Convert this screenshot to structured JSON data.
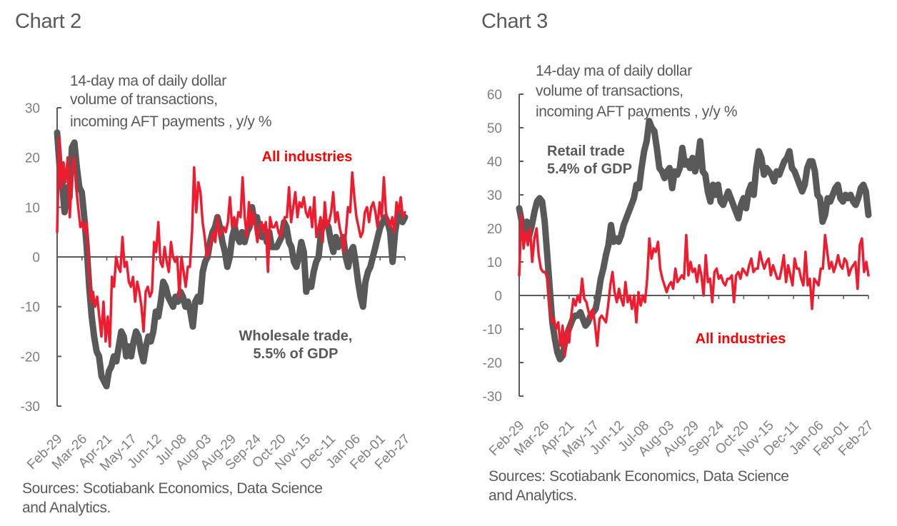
{
  "colors": {
    "gray_series": "#595959",
    "red_series": "#ee1c2e",
    "red_label": "#ff0000",
    "axis": "#595959",
    "tick_text": "#7f7f7f"
  },
  "chart_data": [
    {
      "id": "chart2",
      "type": "line",
      "title": "Chart 2",
      "subtitle": [
        "14-day  ma of daily dollar",
        "volume of transactions,",
        "incoming AFT payments , y/y %"
      ],
      "xlabel": "",
      "ylabel": "",
      "ylim": [
        -30,
        30
      ],
      "yticks": [
        30,
        20,
        10,
        0,
        -10,
        -20,
        -30
      ],
      "xticks": [
        "Feb-29",
        "Mar-26",
        "Apr-21",
        "May-17",
        "Jun-12",
        "Jul-08",
        "Aug-03",
        "Aug-29",
        "Sep-24",
        "Oct-20",
        "Nov-15",
        "Dec-11",
        "Jan-06",
        "Feb-01",
        "Feb-27"
      ],
      "grid": false,
      "annotations": [
        {
          "text": "All industries",
          "series": "All industries",
          "lines": [
            "All industries"
          ]
        },
        {
          "text": "Wholesale trade, 5.5% of GDP",
          "series": "Wholesale trade",
          "lines": [
            "Wholesale trade,",
            "5.5% of GDP"
          ]
        }
      ],
      "source": [
        "Sources: Scotiabank Economics, Data Science",
        "and Analytics."
      ],
      "series": [
        {
          "name": "Wholesale trade",
          "color": "#595959",
          "values": [
            25,
            18,
            15,
            9,
            14,
            12,
            22,
            23,
            18,
            14,
            13,
            8,
            2,
            -6,
            -12,
            -16,
            -19,
            -20,
            -24,
            -25,
            -26,
            -23,
            -22,
            -20,
            -21,
            -18,
            -15,
            -16,
            -20,
            -18,
            -20,
            -17,
            -15,
            -16,
            -19,
            -21,
            -18,
            -16,
            -17,
            -15,
            -11,
            -12,
            -9,
            -5,
            -6,
            -8,
            -9,
            -10,
            -8,
            -9,
            -7,
            -8,
            -10,
            -9,
            -11,
            -14,
            -9,
            -8,
            -9,
            -3,
            -1,
            0,
            3,
            5,
            6,
            8,
            6,
            3,
            1,
            -2,
            0,
            4,
            6,
            4,
            3,
            5,
            3,
            5,
            6,
            10,
            7,
            8,
            5,
            4,
            6,
            3,
            5,
            2,
            2,
            2,
            3,
            4,
            7,
            6,
            3,
            2,
            -1,
            -2,
            0,
            3,
            1,
            -7,
            -5,
            -6,
            -3,
            -1,
            0,
            5,
            7,
            7,
            6,
            3,
            1,
            4,
            2,
            3,
            4,
            0,
            -2,
            1,
            2,
            -1,
            -5,
            -8,
            -10,
            -5,
            -3,
            -2,
            0,
            2,
            4,
            6,
            7,
            8,
            7,
            5,
            -1,
            5,
            8,
            9,
            7,
            8
          ]
        },
        {
          "name": "All industries",
          "color": "#ee1c2e",
          "values": [
            5,
            24,
            14,
            19,
            15,
            20,
            8,
            17,
            20,
            14,
            10,
            6,
            7,
            5,
            7,
            -2,
            -9,
            -7,
            -10,
            -8,
            -12,
            -16,
            -9,
            -17,
            -12,
            -18,
            -4,
            -6,
            0,
            -2,
            -3,
            4,
            -2,
            -1,
            -5,
            -6,
            -4,
            -9,
            -5,
            -7,
            -10,
            -15,
            -7,
            -6,
            -8,
            -7,
            3,
            1,
            7,
            -1,
            -2,
            2,
            -1,
            -3,
            3,
            0,
            -1,
            0,
            -8,
            0,
            -3,
            -6,
            -2,
            -2,
            5,
            18,
            9,
            15,
            13,
            7,
            4,
            0,
            1,
            3,
            5,
            3,
            8,
            4,
            5,
            6,
            5,
            7,
            12,
            6,
            8,
            6,
            9,
            8,
            16,
            8,
            4,
            11,
            6,
            9,
            6,
            3,
            6,
            7,
            5,
            7,
            -3,
            8,
            6,
            6,
            7,
            5,
            4,
            6,
            8,
            8,
            14,
            7,
            10,
            13,
            8,
            11,
            10,
            12,
            9,
            8,
            10,
            6,
            12,
            4,
            6,
            8,
            3,
            11,
            6,
            7,
            9,
            13,
            7,
            9,
            6,
            4,
            1,
            5,
            10,
            9,
            17,
            12,
            8,
            6,
            4,
            5,
            9,
            10,
            7,
            10,
            11,
            9,
            6,
            11,
            8,
            16,
            9,
            7,
            6,
            8,
            5,
            11,
            9,
            12,
            8,
            9
          ]
        }
      ]
    },
    {
      "id": "chart3",
      "type": "line",
      "title": "Chart 3",
      "subtitle": [
        "14-day  ma of daily dollar",
        "volume of transactions,",
        "incoming AFT payments , y/y %"
      ],
      "xlabel": "",
      "ylabel": "",
      "ylim": [
        -30,
        60
      ],
      "yticks": [
        60,
        50,
        40,
        30,
        20,
        10,
        0,
        -10,
        -20,
        -30
      ],
      "xticks": [
        "Feb-29",
        "Mar-26",
        "Apr-21",
        "May-17",
        "Jun-12",
        "Jul-08",
        "Aug-03",
        "Aug-29",
        "Sep-24",
        "Oct-20",
        "Nov-15",
        "Dec-11",
        "Jan-06",
        "Feb-01",
        "Feb-27"
      ],
      "grid": false,
      "annotations": [
        {
          "text": "Retail trade 5.4% of GDP",
          "series": "Retail trade",
          "lines": [
            "Retail trade",
            "5.4%  of GDP"
          ]
        },
        {
          "text": "All industries",
          "series": "All industries",
          "lines": [
            "All industries"
          ]
        }
      ],
      "source": [
        "Sources: Scotiabank Economics, Data Science",
        "and Analytics."
      ],
      "series": [
        {
          "name": "Retail trade",
          "color": "#595959",
          "values": [
            26,
            22,
            19,
            22,
            18,
            21,
            25,
            28,
            29,
            28,
            22,
            12,
            2,
            -8,
            -13,
            -17,
            -19,
            -18,
            -14,
            -11,
            -9,
            -7,
            -6,
            -6,
            -5,
            -7,
            -9,
            -8,
            -6,
            -5,
            -4,
            0,
            5,
            8,
            12,
            15,
            21,
            16,
            17,
            16,
            18,
            21,
            23,
            25,
            27,
            29,
            33,
            32,
            38,
            43,
            46,
            52,
            50,
            49,
            44,
            38,
            37,
            35,
            37,
            38,
            32,
            37,
            36,
            38,
            44,
            39,
            40,
            38,
            41,
            37,
            40,
            46,
            37,
            36,
            31,
            28,
            33,
            30,
            33,
            28,
            27,
            29,
            31,
            29,
            27,
            25,
            23,
            27,
            29,
            26,
            31,
            33,
            30,
            38,
            43,
            41,
            36,
            38,
            37,
            36,
            34,
            37,
            36,
            38,
            40,
            41,
            43,
            38,
            37,
            35,
            33,
            31,
            33,
            38,
            40,
            40,
            37,
            30,
            29,
            22,
            24,
            29,
            28,
            30,
            32,
            33,
            29,
            28,
            30,
            29,
            30,
            28,
            27,
            29,
            32,
            33,
            31,
            24
          ]
        },
        {
          "name": "All industries",
          "color": "#ee1c2e",
          "values": [
            6,
            24,
            14,
            19,
            15,
            20,
            10,
            17,
            20,
            12,
            8,
            7,
            7,
            5,
            -3,
            -8,
            -7,
            -10,
            -8,
            -15,
            -9,
            -18,
            -10,
            -14,
            -6,
            -1,
            -3,
            0,
            -2,
            5,
            -1,
            -2,
            -5,
            -7,
            -4,
            -9,
            -15,
            -7,
            -6,
            -7,
            -8,
            -3,
            3,
            7,
            1,
            -2,
            2,
            -1,
            -3,
            4,
            -2,
            0,
            -4,
            0,
            -8,
            1,
            -3,
            0,
            -2,
            5,
            17,
            11,
            14,
            13,
            16,
            8,
            5,
            3,
            1,
            3,
            4,
            2,
            8,
            4,
            5,
            6,
            5,
            18,
            6,
            10,
            7,
            8,
            4,
            9,
            6,
            0,
            12,
            4,
            5,
            -2,
            7,
            8,
            5,
            6,
            4,
            3,
            5,
            5,
            6,
            -2,
            6,
            7,
            5,
            8,
            7,
            6,
            9,
            11,
            7,
            8,
            8,
            13,
            10,
            8,
            10,
            11,
            6,
            9,
            7,
            5,
            5,
            8,
            12,
            4,
            9,
            6,
            3,
            11,
            8,
            8,
            5,
            3,
            13,
            3,
            5,
            -4,
            5,
            4,
            3,
            8,
            8,
            18,
            13,
            8,
            10,
            7,
            9,
            12,
            9,
            8,
            11,
            10,
            6,
            8,
            9,
            10,
            2,
            15,
            17,
            7,
            10,
            6
          ]
        }
      ]
    }
  ]
}
